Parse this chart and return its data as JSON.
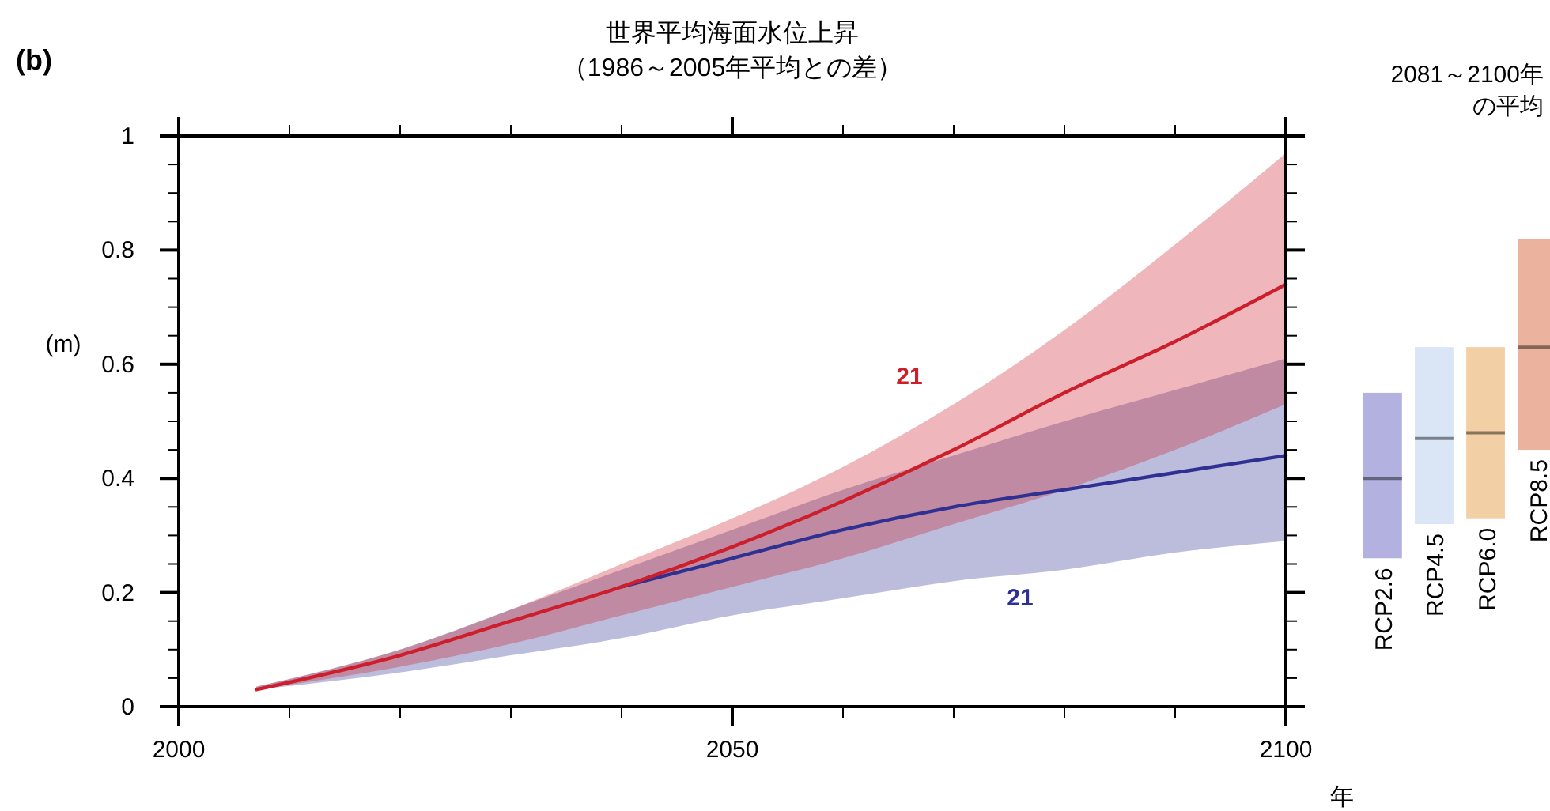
{
  "chart_data": [
    {
      "type": "line",
      "title": "世界平均海面水位上昇",
      "subtitle": "（1986～2005年平均との差）",
      "xlabel": "年",
      "ylabel": "(m)",
      "annotations": [
        "(b)",
        "21",
        "21"
      ],
      "xlim": [
        2000,
        2100
      ],
      "xticks": [
        2000,
        {
          "value": 2010,
          "label": null
        },
        {
          "value": 2020,
          "label": null
        },
        {
          "value": 2030,
          "label": null
        },
        {
          "value": 2040,
          "label": null
        },
        2050,
        {
          "value": 2060,
          "label": null
        },
        {
          "value": 2070,
          "label": null
        },
        {
          "value": 2080,
          "label": null
        },
        {
          "value": 2090,
          "label": null
        },
        2100
      ],
      "ylim": [
        0,
        1
      ],
      "yticks": [
        0,
        {
          "value": 0.05,
          "label": null
        },
        {
          "value": 0.1,
          "label": null
        },
        {
          "value": 0.15,
          "label": null
        },
        0.2,
        {
          "value": 0.25,
          "label": null
        },
        {
          "value": 0.3,
          "label": null
        },
        {
          "value": 0.35,
          "label": null
        },
        0.4,
        {
          "value": 0.45,
          "label": null
        },
        {
          "value": 0.5,
          "label": null
        },
        {
          "value": 0.55,
          "label": null
        },
        0.6,
        {
          "value": 0.65,
          "label": null
        },
        {
          "value": 0.7,
          "label": null
        },
        {
          "value": 0.75,
          "label": null
        },
        0.8,
        {
          "value": 0.85,
          "label": null
        },
        {
          "value": 0.9,
          "label": null
        },
        {
          "value": 0.95,
          "label": null
        },
        1
      ],
      "x": [
        2007,
        2020,
        2030,
        2040,
        2050,
        2060,
        2070,
        2080,
        2090,
        2100
      ],
      "series": [
        {
          "color": "#2e3192",
          "values": [
            null,
            null,
            null,
            0.21,
            0.26,
            0.31,
            0.35,
            0.38,
            0.41,
            0.44
          ],
          "lower": [
            0.03,
            0.06,
            0.09,
            0.12,
            0.16,
            0.19,
            0.22,
            0.24,
            0.27,
            0.29
          ],
          "upper": [
            0.035,
            0.1,
            0.17,
            0.24,
            0.31,
            0.38,
            0.44,
            0.5,
            0.555,
            0.61
          ]
        },
        {
          "color": "#cc1f2b",
          "values": [
            0.03,
            0.09,
            0.15,
            0.21,
            0.28,
            0.36,
            0.45,
            0.55,
            0.64,
            0.74
          ],
          "lower": [
            0.03,
            0.07,
            0.11,
            0.16,
            0.21,
            0.26,
            0.32,
            0.38,
            0.45,
            0.53
          ],
          "upper": [
            0.035,
            0.1,
            0.17,
            0.25,
            0.33,
            0.42,
            0.53,
            0.66,
            0.81,
            0.97
          ]
        }
      ]
    },
    {
      "type": "box",
      "title": "2081～2100年の平均",
      "categories": [
        "RCP2.6",
        "RCP4.5",
        "RCP6.0",
        "RCP8.5"
      ],
      "ylim": [
        0,
        1
      ],
      "tick_labels": "x",
      "colors": [
        "#b3b1e0",
        "#dae5f6",
        "#f3cfa6",
        "#ebb29e"
      ],
      "boxes": [
        {
          "low": 0.26,
          "q1": 0.26,
          "median": 0.4,
          "q3": 0.55,
          "high": 0.55
        },
        {
          "low": 0.32,
          "q1": 0.32,
          "median": 0.47,
          "q3": 0.63,
          "high": 0.63
        },
        {
          "low": 0.33,
          "q1": 0.33,
          "median": 0.48,
          "q3": 0.63,
          "high": 0.63
        },
        {
          "low": 0.45,
          "q1": 0.45,
          "median": 0.63,
          "q3": 0.82,
          "high": 0.82
        }
      ]
    }
  ]
}
